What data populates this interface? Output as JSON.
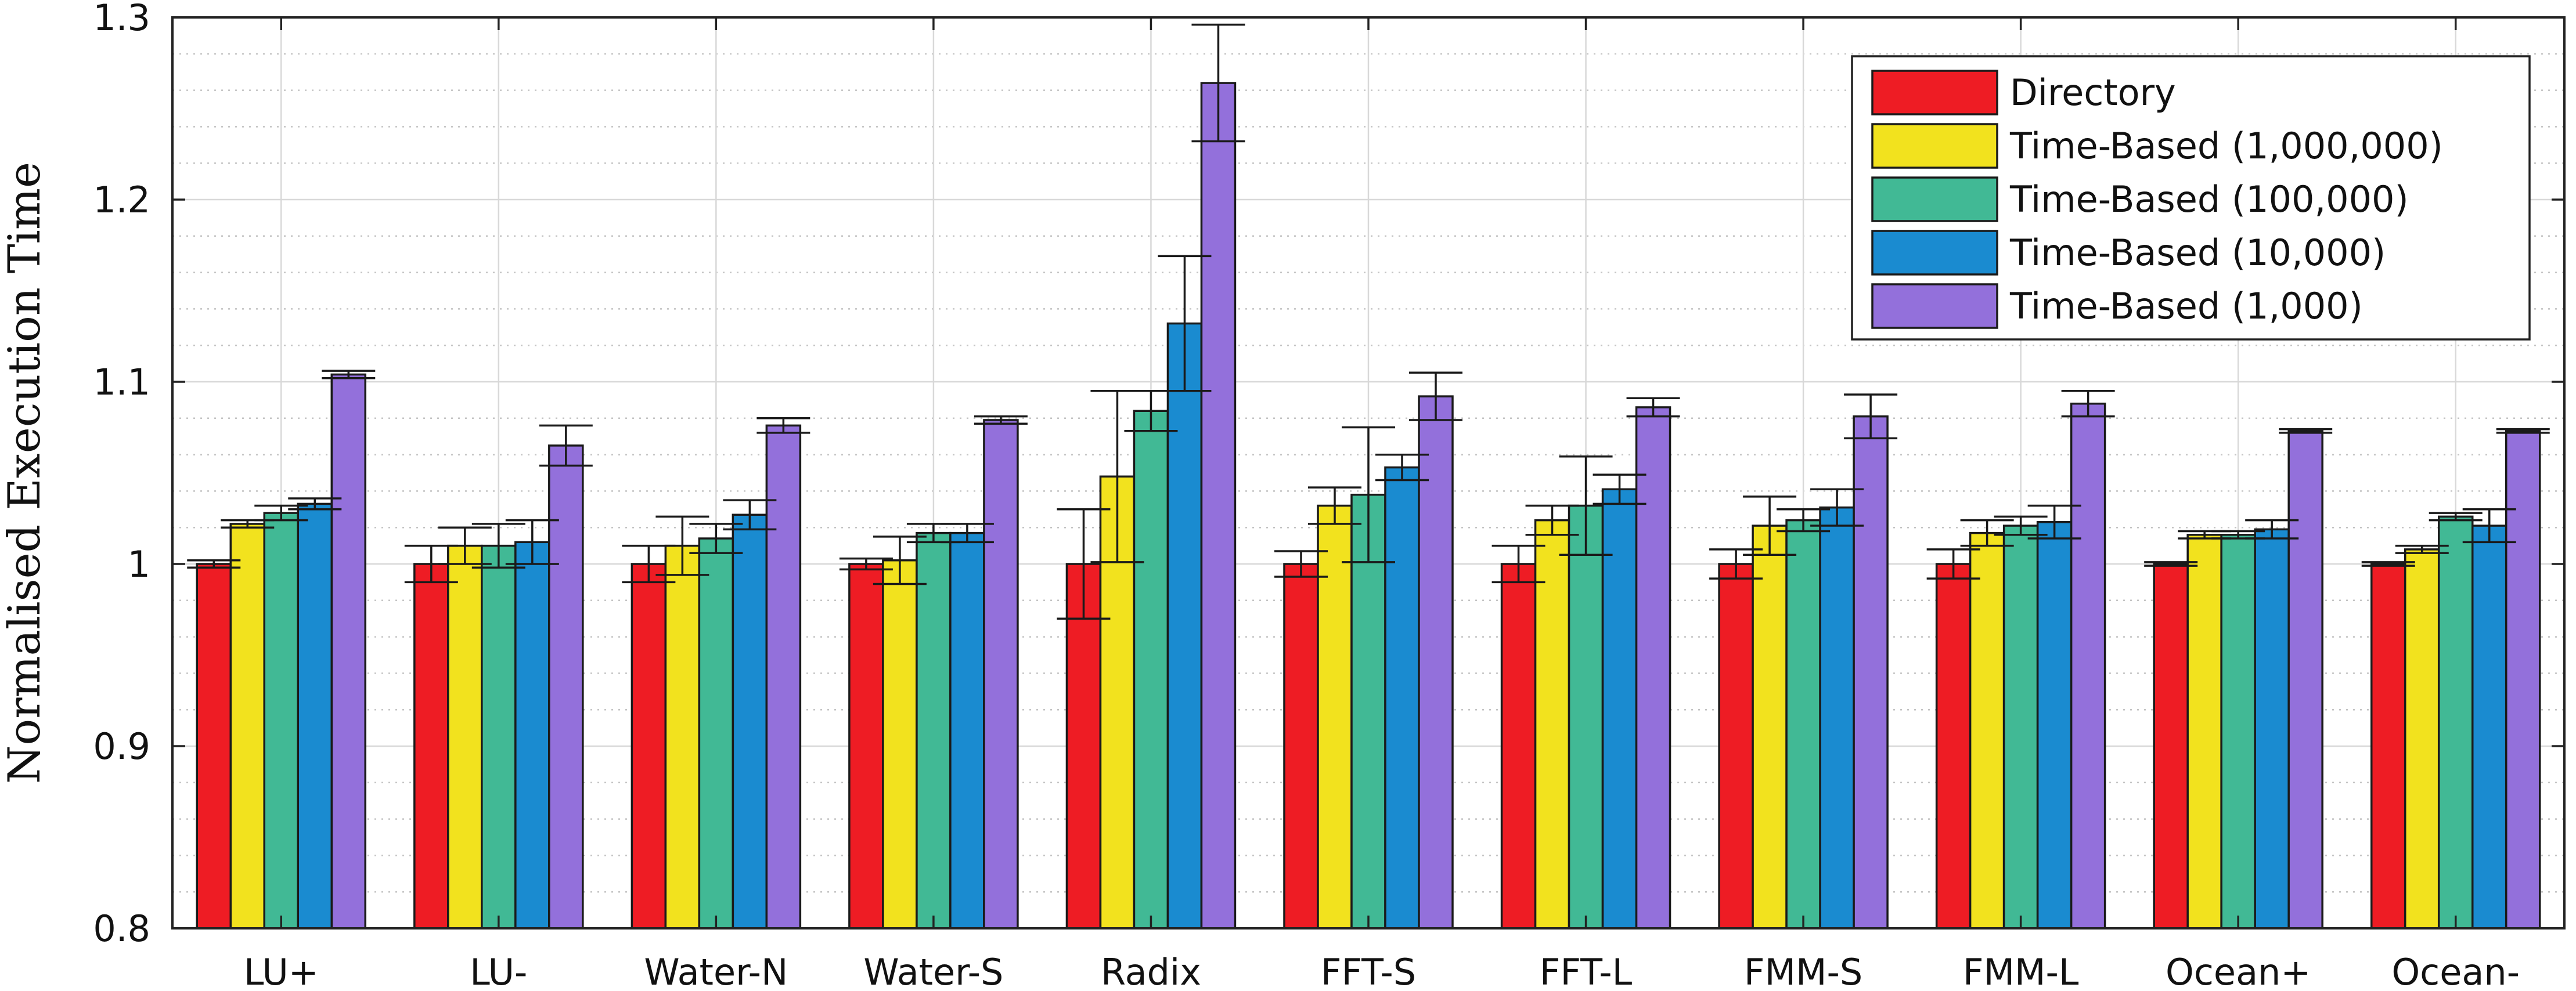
{
  "chart_data": {
    "type": "bar",
    "title": "",
    "xlabel": "",
    "ylabel": "Normalised Execution Time",
    "ylim": [
      0.8,
      1.3
    ],
    "yticks": [
      0.8,
      0.9,
      1,
      1.1,
      1.2,
      1.3
    ],
    "ytick_labels": [
      "0.8",
      "0.9",
      "1",
      "1.1",
      "1.2",
      "1.3"
    ],
    "grid": true,
    "minor_grid": true,
    "error_bars": true,
    "legend_position": "top-right",
    "categories": [
      "LU+",
      "LU-",
      "Water-N",
      "Water-S",
      "Radix",
      "FFT-S",
      "FFT-L",
      "FMM-S",
      "FMM-L",
      "Ocean+",
      "Ocean-"
    ],
    "series": [
      {
        "name": "Directory",
        "color": "#ee1c24",
        "values": [
          1.0,
          1.0,
          1.0,
          1.0,
          1.0,
          1.0,
          1.0,
          1.0,
          1.0,
          1.0,
          1.0
        ],
        "errors": [
          0.002,
          0.01,
          0.01,
          0.003,
          0.03,
          0.007,
          0.01,
          0.008,
          0.008,
          0.001,
          0.001
        ]
      },
      {
        "name": "Time-Based (1,000,000)",
        "color": "#f2e21e",
        "values": [
          1.022,
          1.01,
          1.01,
          1.002,
          1.048,
          1.032,
          1.024,
          1.021,
          1.017,
          1.016,
          1.008
        ],
        "errors": [
          0.002,
          0.01,
          0.016,
          0.013,
          0.047,
          0.01,
          0.008,
          0.016,
          0.007,
          0.002,
          0.002
        ]
      },
      {
        "name": "Time-Based (100,000)",
        "color": "#41b995",
        "values": [
          1.028,
          1.01,
          1.014,
          1.017,
          1.084,
          1.038,
          1.032,
          1.024,
          1.021,
          1.016,
          1.026
        ],
        "errors": [
          0.004,
          0.012,
          0.008,
          0.005,
          0.011,
          0.037,
          0.027,
          0.006,
          0.005,
          0.002,
          0.002
        ]
      },
      {
        "name": "Time-Based (10,000)",
        "color": "#1a8bd0",
        "values": [
          1.033,
          1.012,
          1.027,
          1.017,
          1.132,
          1.053,
          1.041,
          1.031,
          1.023,
          1.019,
          1.021
        ],
        "errors": [
          0.003,
          0.012,
          0.008,
          0.005,
          0.037,
          0.007,
          0.008,
          0.01,
          0.009,
          0.005,
          0.009
        ]
      },
      {
        "name": "Time-Based (1,000)",
        "color": "#9370db",
        "values": [
          1.104,
          1.065,
          1.076,
          1.079,
          1.264,
          1.092,
          1.086,
          1.081,
          1.088,
          1.073,
          1.073
        ],
        "errors": [
          0.002,
          0.011,
          0.004,
          0.002,
          0.032,
          0.013,
          0.005,
          0.012,
          0.007,
          0.001,
          0.001
        ]
      }
    ]
  }
}
